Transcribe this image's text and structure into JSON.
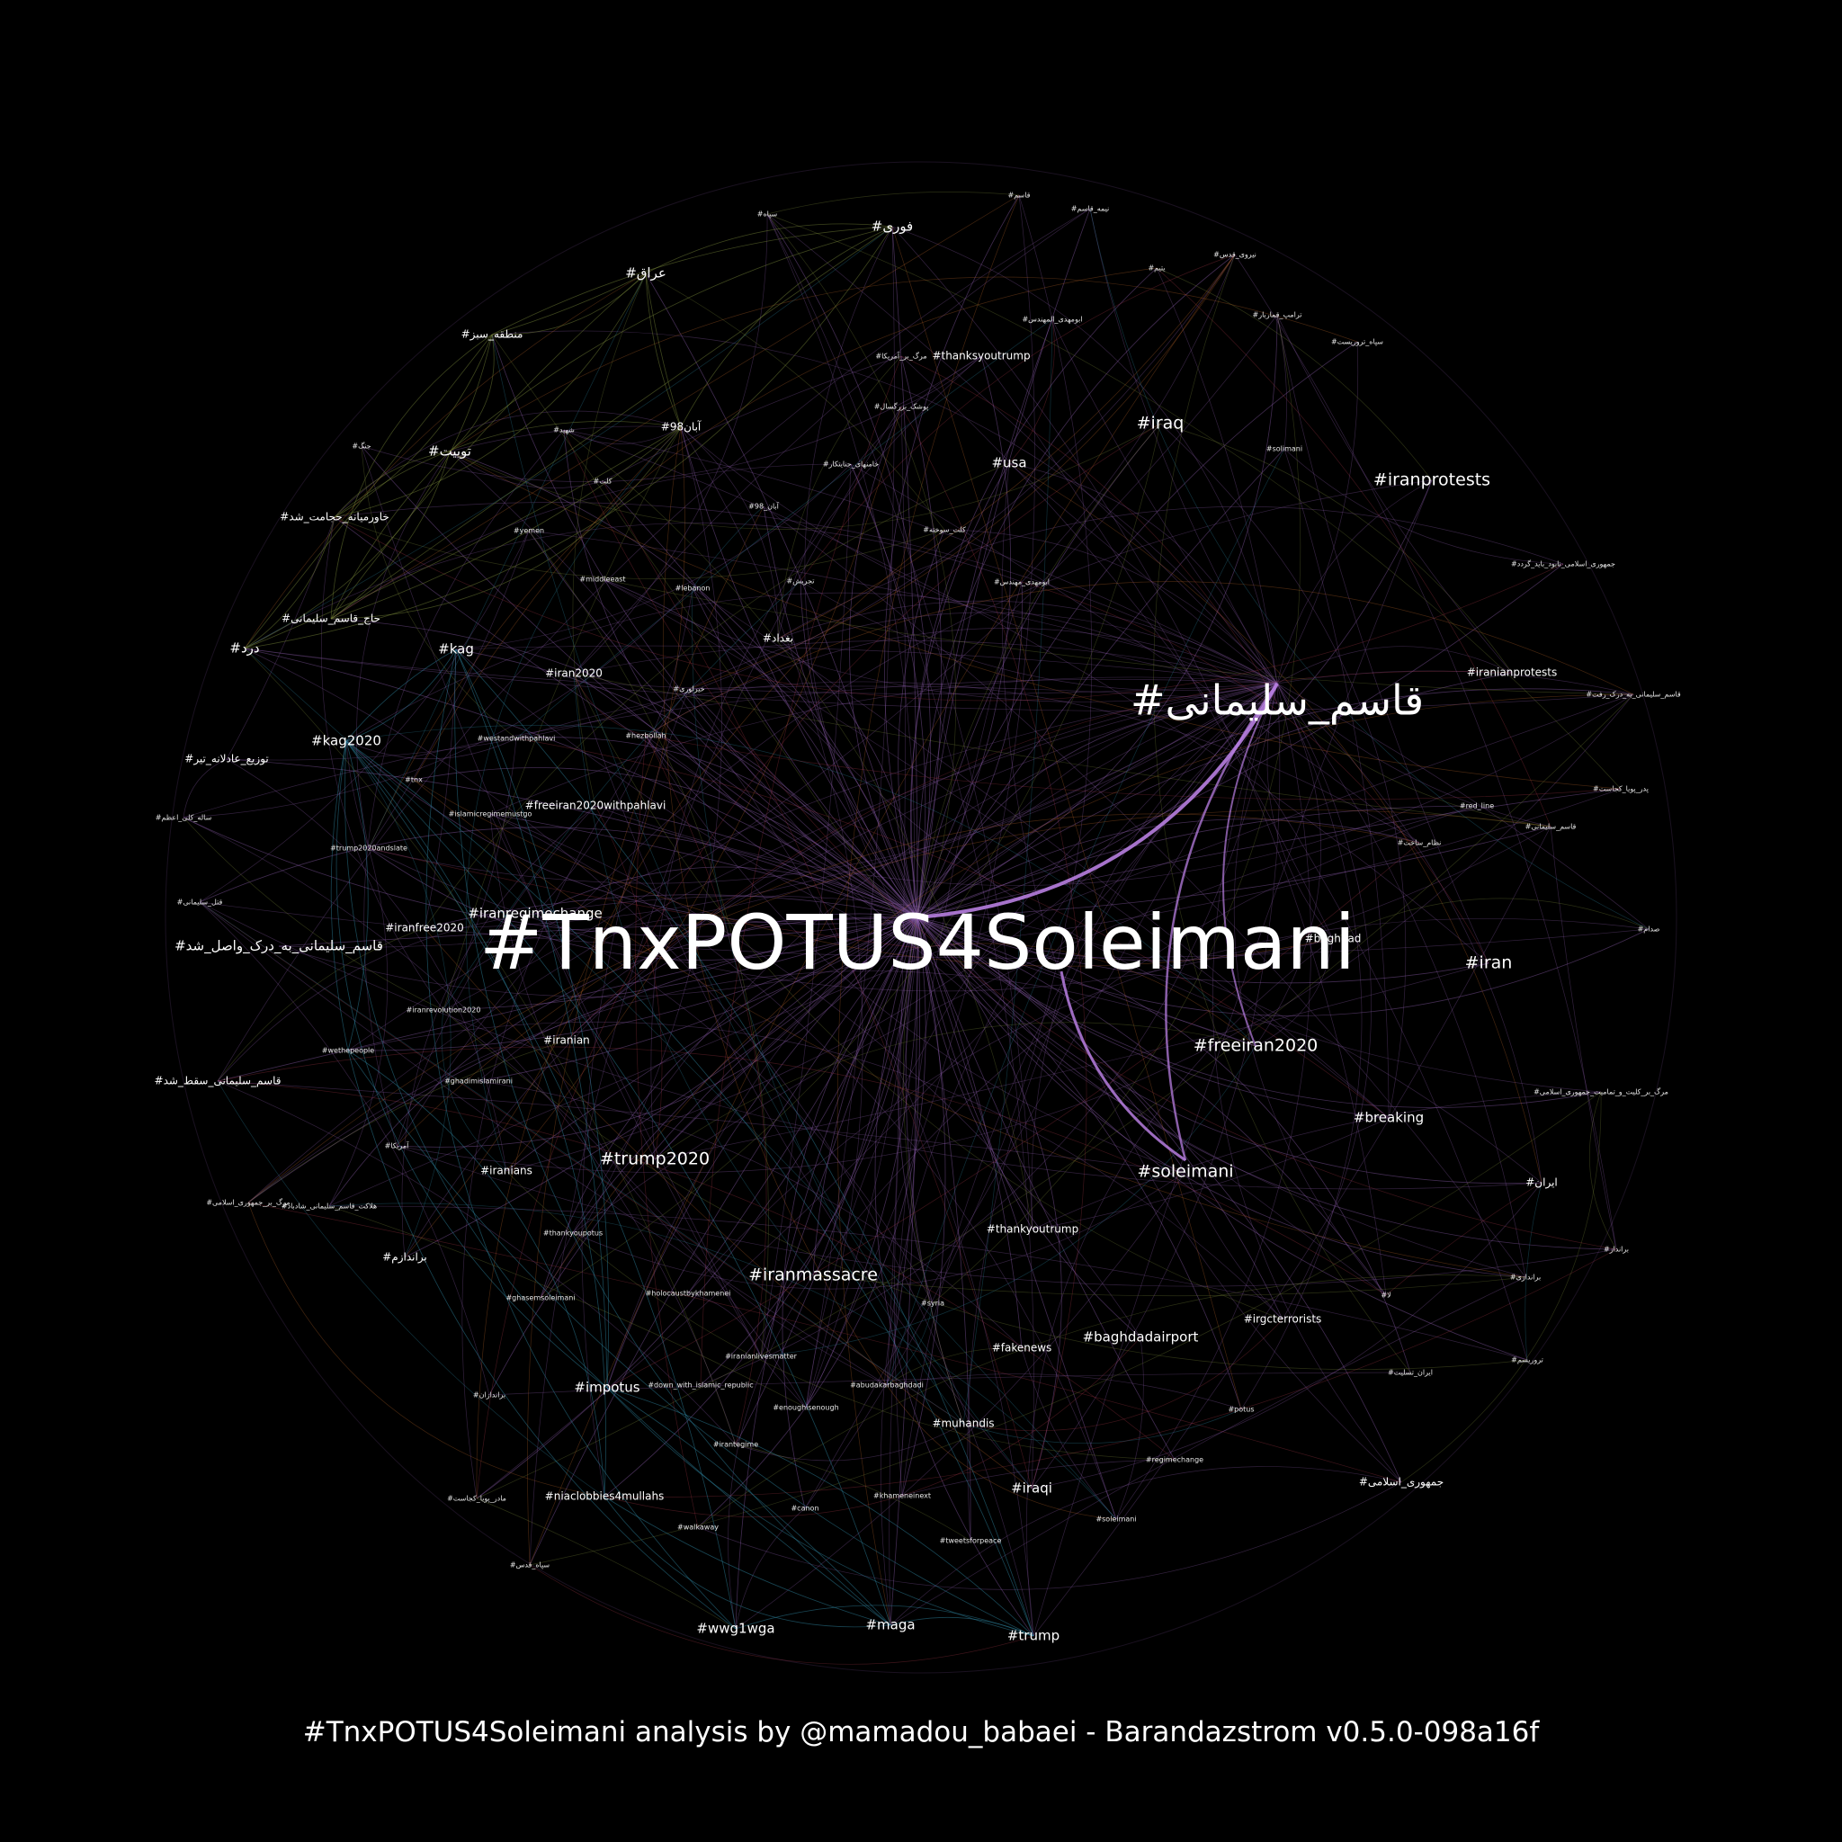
{
  "caption": "#TnxPOTUS4Soleimani analysis by @mamadou_babaei - Barandazstrom v0.5.0-098a16f",
  "colors": {
    "background": "#000000",
    "hub": "#b77ee0",
    "purple": "#8e5fb0",
    "green": "#7a8a3a",
    "teal": "#2f8aa6",
    "orange": "#c26a2a",
    "red": "#b03a4a",
    "label": "#ffffff"
  },
  "nodes": {
    "tnxpotus4soleimani": "#TnxPOTUS4Soleimani",
    "ghasem_soleimani": "#قاسم_سلیمانی",
    "iranprotests": "#iranprotests",
    "iraq": "#iraq",
    "usa": "#usa",
    "iran": "#iran",
    "freeiran2020": "#freeiran2020",
    "soleimani": "#soleimani",
    "baghdad": "#baghdad",
    "breaking": "#breaking",
    "trump2020": "#trump2020",
    "iranmassacre": "#iranmassacre",
    "thankyoutrump": "#thankyoutrump",
    "baghdadairport": "#baghdadairport",
    "irgcterrorists": "#irgcterrorists",
    "fakenews": "#fakenews",
    "impotus": "#impotus",
    "muhandis": "#muhandis",
    "iraqi": "#iraqi",
    "wwg1wga": "#wwg1wga",
    "maga": "#maga",
    "trump": "#trump",
    "kag": "#kag",
    "kag2020": "#kag2020",
    "iran2020": "#iran2020",
    "iranregimechange": "#iranregimechange",
    "iranfree2020": "#iranfree2020",
    "freeiran2020withpahlavi": "#freeiran2020withpahlavi",
    "iranians": "#iranians",
    "iranian": "#iranian",
    "middleeast": "#middleeast",
    "lebanon": "#lebanon",
    "yemen": "#yemen",
    "thanksyoutrump": "#thanksyoutrump",
    "iranianprotests": "#iranianprotests",
    "niaclobbies4mullahs": "#niaclobbies4mullahs",
    "khameneinext": "#khameneinext",
    "holocaustbykhamenei": "#holocaustbykhamenei",
    "wethepeople": "#wethepeople",
    "westandwithpahlavi": "#westandwithpahlavi",
    "islamicregimemustgo": "#islamicregimemustgo",
    "syria": "#syria",
    "canon": "#canon",
    "walkaway": "#walkaway",
    "potus": "#potus",
    "regimechange": "#regimechange",
    "soleimani2": "#soleimani",
    "solimani": "#solimani",
    "fori": "#فوری",
    "eragh": "#عراق",
    "mantaghe_sabz": "#منطقه_سبز",
    "tweet": "#توییت",
    "khavarmiane": "#خاورمیانه_حجامت_شد",
    "haj_ghasem": "#حاج_قاسم_سلیمانی",
    "dard": "#درد",
    "tozie_adelane": "#توزیع_عادلانه_تیر",
    "ghasem_dark": "#قاسم_سلیمانی_به_درک_واصل_شد",
    "ghasem_saght": "#قاسم_سلیمانی_سقط_شد",
    "marg_bar_jomhouri": "#مرگ_بر_جمهوری_اسلامی",
    "halakat": "#هلاکت_قاسم_سلیمانی_شادباد",
    "barandazam": "#براندازم",
    "barandazan": "#براندازان",
    "madar_pouya": "#مادر_پویا_کجاست",
    "sepah_ghods": "#سپاه_قدس",
    "aban98": "#آبان98",
    "aban98b": "#آبان_98",
    "abumahdi": "#ابومهدی_المهندس",
    "abumahdi2": "#ابومهدی_مهندس",
    "baghdad_fa": "#بغداد",
    "pooshak": "#پوشک_بزرگسال",
    "sepah": "#سپاه",
    "niroo_ghods": "#نیروی_قدس",
    "nimeh_ghasem": "#نیمه_قاسم",
    "ghasem": "#قاسم",
    "yatim": "#یتیم",
    "trump_ghomarbaz": "#ترامپ_قماربار",
    "sepah_terrorist": "#سپاه_تروریست",
    "jomhouri_nabood": "#جمهوری_اسلامی_نابود_باید_گردد",
    "ghasem_be_dark_raft": "#قاسم_سلیمانی_به_درک_رفت",
    "pedar_pouya": "#پدر_پویا_کجاست",
    "ghasem_soleimani2": "#قاسم_سلیمانی",
    "nezam_sakht": "#نظام_ساخت",
    "saddam": "#صدام",
    "marg_bar_kolliat": "#مرگ_بر_کلیت_و_تمامیت_جمهوری_اسلامی",
    "iran_fa": "#ایران",
    "barandaz": "#برانداز",
    "barandazi": "#براندازی",
    "terrorism": "#تروریسم",
    "la": "#لا",
    "iran_tasliyat": "#ایران_تسلیت",
    "jomhouri_eslami": "#جمهوری_اسلامی",
    "amrika": "#آمریکا",
    "hashtag_ghost": "#جنگ",
    "shahid": "#شهید",
    "kolelat": "#کلت",
    "kolelat_sookhte": "#کلت_سوخته",
    "khamooshi": "#خامنهای_جنایتکار",
    "kheyrloori": "#خیرلوری",
    "marg_bar_amrika": "#مرگ_بر_آمریکا",
    "tajrish": "#تجریش",
    "ghatl_soleimani": "#قتل_سلیمانی",
    "sale_kalle": "#ساله_کلی_اعظم",
    "hezbollah": "#hezbollah",
    "tnx": "#tnx",
    "trump2020andslate": "#trump2020andslate",
    "iranrevolution2020": "#iranrevolution2020",
    "ghadimislamirani": "#ghadimislamirani",
    "thankyoupotus": "#thankyoupotus",
    "ghasemsoleimani": "#ghasemsoleimani",
    "iranianlivesmatter": "#iranianlivesmatter",
    "down_with_islamic_republic": "#down_with_islamic_republic",
    "abudakarbaghdadi": "#abudakarbaghdadi",
    "enoughisenough": "#enoughisenough",
    "irantegime": "#irantegime",
    "tweetsforpeace": "#tweetsforpeace",
    "red_line": "#red_line"
  }
}
